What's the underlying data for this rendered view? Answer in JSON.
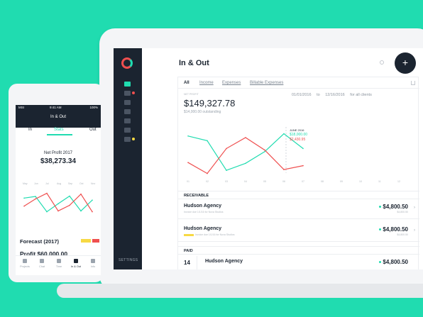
{
  "desktop": {
    "title": "In & Out",
    "tabs": [
      "All",
      "Income",
      "Expenses",
      "Billable Expenses"
    ],
    "net_profit_label": "NET PROFIT",
    "date_from": "01/01/2016",
    "date_to_word": "to",
    "date_to": "12/16/2016",
    "clients_filter": "for all clients",
    "amount": "$149,327.78",
    "outstanding": "$14,000.00 outstanding",
    "chart_tooltip": {
      "date": "JUNE 2016",
      "income": "$18,000.00",
      "expense": "$2,430.95"
    },
    "chart_months": [
      "01",
      "02",
      "03",
      "04",
      "05",
      "06",
      "07",
      "08",
      "09",
      "10",
      "11",
      "12"
    ],
    "receivable_label": "RECEIVABLE",
    "paid_label": "PAID",
    "receivable": [
      {
        "name": "Hudson Agency",
        "desc": "Invoice due 1/1/16 for Nova Studios",
        "amount": "$4,800.50",
        "sub": "$4,800.50"
      },
      {
        "name": "Hudson Agency",
        "desc": "Invoice due 1/1/16 for Nova Studios",
        "amount": "$4,800.50",
        "sub": "$4,800.50"
      }
    ],
    "paid": [
      {
        "day": "14",
        "name": "Hudson Agency",
        "amount": "$4,800.50"
      }
    ],
    "settings_label": "SETTINGS"
  },
  "phone": {
    "carrier": "MSI",
    "time": "9:41 AM",
    "battery": "100%",
    "title": "In & Out",
    "tabs": [
      "In",
      "Stats",
      "Out"
    ],
    "net_profit_label": "Net Profit 2017",
    "net_profit": "$38,273.34",
    "months": [
      "May",
      "Jun",
      "Jul",
      "Aug",
      "Sep",
      "Oct",
      "Nov"
    ],
    "forecast_label": "Forecast (2017)",
    "profit": "Profit $60,000.00",
    "nav": [
      "Projects",
      "Chat",
      "Time",
      "In & Out",
      "Info"
    ]
  },
  "chart_data": {
    "type": "line",
    "x": [
      "01",
      "02",
      "03",
      "04",
      "05",
      "06",
      "07"
    ],
    "series": [
      {
        "name": "Income",
        "values": [
          52,
          46,
          8,
          17,
          32,
          55,
          36
        ],
        "color": "#20dcb0"
      },
      {
        "name": "Expenses",
        "values": [
          18,
          4,
          36,
          50,
          34,
          9,
          14
        ],
        "color": "#ef4f4f"
      }
    ],
    "ylim": [
      0,
      60
    ]
  },
  "colors": {
    "accent": "#20dcb0",
    "danger": "#ef4f4f",
    "dark": "#1b2430",
    "warning": "#f7d944"
  }
}
